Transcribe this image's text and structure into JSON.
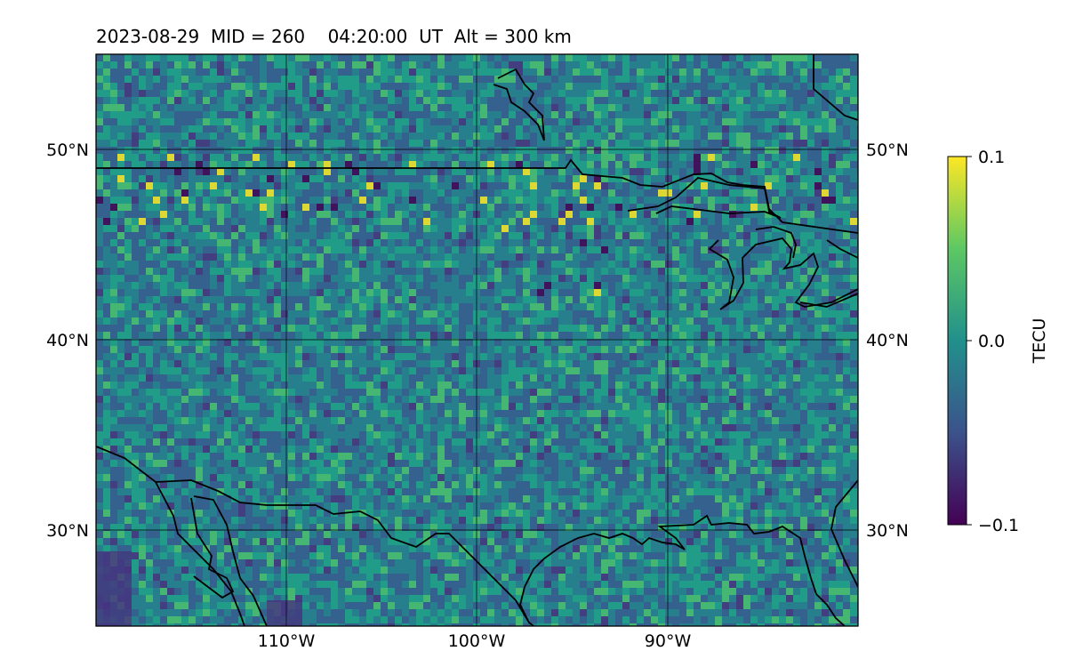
{
  "map": {
    "title": "2023-08-29  MID = 260    04:20:00  UT  Alt = 300 km",
    "lat_labels": [
      "50°N",
      "40°N",
      "30°N"
    ],
    "lon_labels": [
      "110°W",
      "100°W",
      "90°W"
    ]
  },
  "colorbar": {
    "label": "TECU",
    "ticks": [
      "0.1",
      "0.0",
      "−0.1"
    ],
    "colors": [
      "#440154",
      "#3b528b",
      "#21908c",
      "#5dc863",
      "#fde725"
    ]
  },
  "field": {
    "base_color": "#2d7f8e",
    "low_color": "#45377f",
    "high_color": "#a8db34"
  }
}
